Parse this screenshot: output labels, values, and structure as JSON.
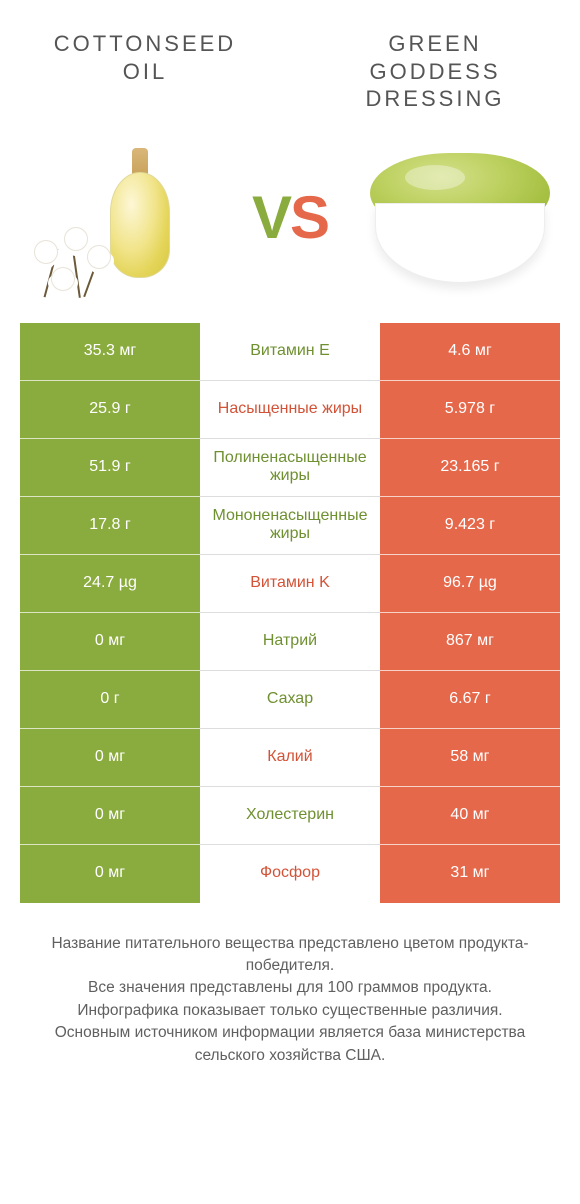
{
  "left_title": "COTTONSEED OIL",
  "right_title": "GREEN GODDESS DRESSING",
  "vs_v": "V",
  "vs_s": "S",
  "colors": {
    "green": "#8aab3e",
    "orange": "#e5684b",
    "mid_green": "#6f9030",
    "mid_orange": "#d25338",
    "bg": "#ffffff",
    "text": "#555555"
  },
  "rows": [
    {
      "left": "35.3 мг",
      "label": "Витамин E",
      "right": "4.6 мг",
      "left_bg": "green",
      "right_bg": "orange",
      "label_color": "green"
    },
    {
      "left": "25.9 г",
      "label": "Насыщенные жиры",
      "right": "5.978 г",
      "left_bg": "green",
      "right_bg": "orange",
      "label_color": "orange"
    },
    {
      "left": "51.9 г",
      "label": "Полиненасыщенные жиры",
      "right": "23.165 г",
      "left_bg": "green",
      "right_bg": "orange",
      "label_color": "green"
    },
    {
      "left": "17.8 г",
      "label": "Мононенасыщенные жиры",
      "right": "9.423 г",
      "left_bg": "green",
      "right_bg": "orange",
      "label_color": "green"
    },
    {
      "left": "24.7 µg",
      "label": "Витамин K",
      "right": "96.7 µg",
      "left_bg": "green",
      "right_bg": "orange",
      "label_color": "orange"
    },
    {
      "left": "0 мг",
      "label": "Натрий",
      "right": "867 мг",
      "left_bg": "green",
      "right_bg": "orange",
      "label_color": "green"
    },
    {
      "left": "0 г",
      "label": "Сахар",
      "right": "6.67 г",
      "left_bg": "green",
      "right_bg": "orange",
      "label_color": "green"
    },
    {
      "left": "0 мг",
      "label": "Калий",
      "right": "58 мг",
      "left_bg": "green",
      "right_bg": "orange",
      "label_color": "orange"
    },
    {
      "left": "0 мг",
      "label": "Холестерин",
      "right": "40 мг",
      "left_bg": "green",
      "right_bg": "orange",
      "label_color": "green"
    },
    {
      "left": "0 мг",
      "label": "Фосфор",
      "right": "31 мг",
      "left_bg": "green",
      "right_bg": "orange",
      "label_color": "orange"
    }
  ],
  "footer_lines": [
    "Название питательного вещества представлено цветом продукта-победителя.",
    "Все значения представлены для 100 граммов продукта.",
    "Инфографика показывает только существенные различия.",
    "Основным источником информации является база министерства сельского хозяйства США."
  ]
}
